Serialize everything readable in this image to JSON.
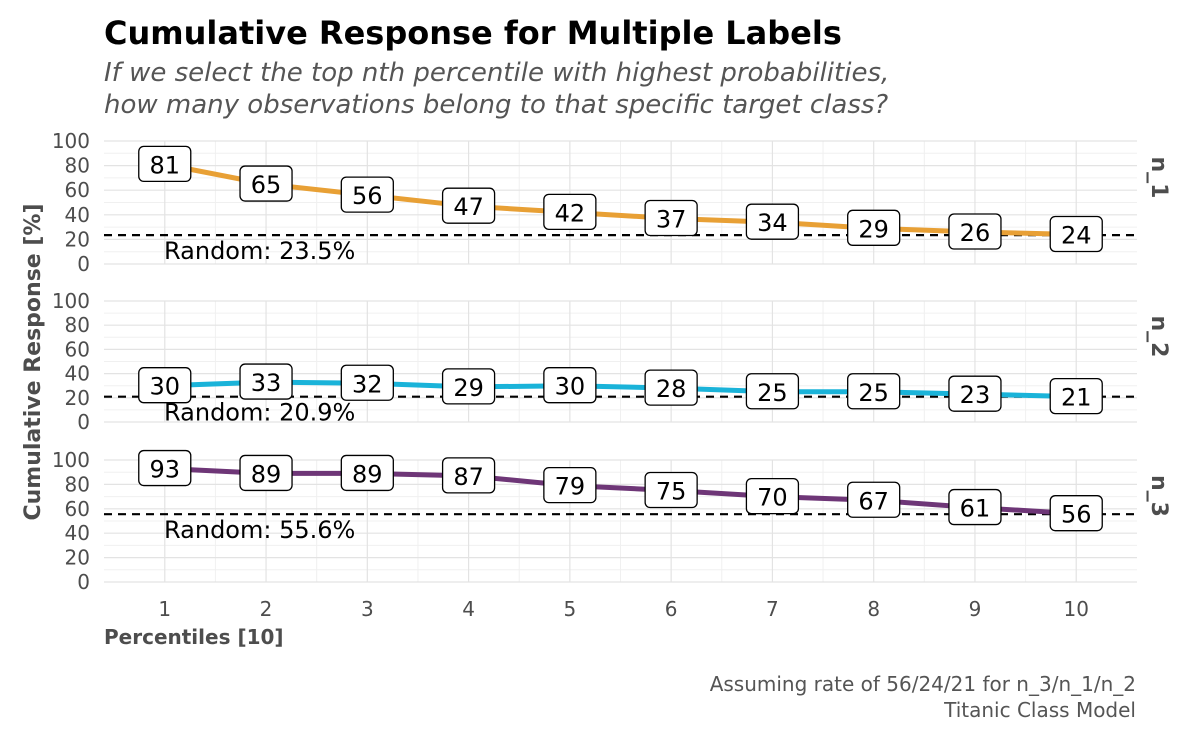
{
  "title": "Cumulative Response for Multiple Labels",
  "subtitle_lines": [
    "If we select the top nth percentile with highest probabilities,",
    "how many observations belong to that specific target class?"
  ],
  "caption_lines": [
    "Assuming rate of 56/24/21 for n_3/n_1/n_2",
    "Titanic Class Model"
  ],
  "chart_data": {
    "type": "line",
    "title": "Cumulative Response for Multiple Labels",
    "xlabel": "Percentiles [10]",
    "ylabel": "Cumulative Response [%]",
    "x": [
      1,
      2,
      3,
      4,
      5,
      6,
      7,
      8,
      9,
      10
    ],
    "xlim": [
      0.4,
      10.6
    ],
    "ylim": [
      0,
      100
    ],
    "y_ticks": [
      0,
      20,
      40,
      60,
      80,
      100
    ],
    "grid": true,
    "panels": [
      {
        "strip_label": "n_1",
        "color": "#E8A035",
        "values": [
          81,
          65,
          56,
          47,
          42,
          37,
          34,
          29,
          26,
          24
        ],
        "labels": [
          "81",
          "65",
          "56",
          "47",
          "42",
          "37",
          "34",
          "29",
          "26",
          "24"
        ],
        "random": 23.5,
        "random_label": "Random: 23.5%"
      },
      {
        "strip_label": "n_2",
        "color": "#1AB3D9",
        "values": [
          30,
          33,
          32,
          29,
          30,
          28,
          25,
          25,
          23,
          21
        ],
        "labels": [
          "30",
          "33",
          "32",
          "29",
          "30",
          "28",
          "25",
          "25",
          "23",
          "21"
        ],
        "random": 20.9,
        "random_label": "Random: 20.9%"
      },
      {
        "strip_label": "n_3",
        "color": "#6E3677",
        "values": [
          93,
          89,
          89,
          87,
          79,
          75,
          70,
          67,
          61,
          56
        ],
        "labels": [
          "93",
          "89",
          "89",
          "87",
          "79",
          "75",
          "70",
          "67",
          "61",
          "56"
        ],
        "random": 55.6,
        "random_label": "Random: 55.6%"
      }
    ]
  }
}
